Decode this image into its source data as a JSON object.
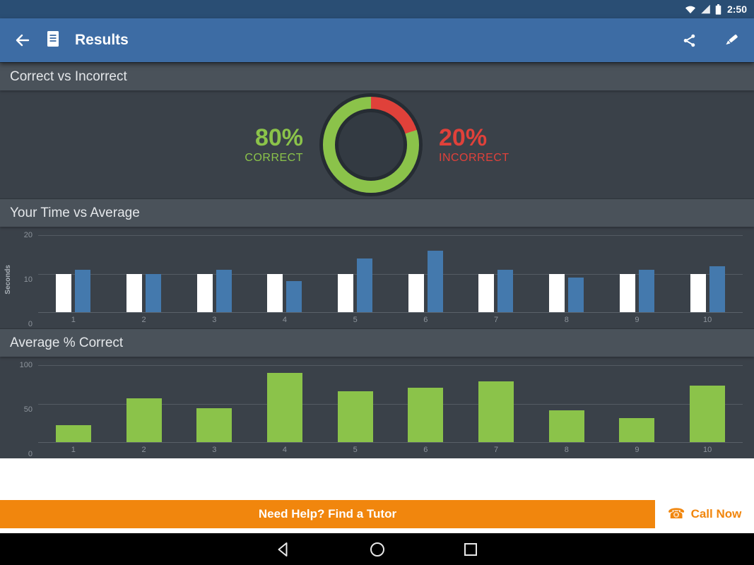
{
  "status_bar": {
    "time": "2:50"
  },
  "app_bar": {
    "title": "Results"
  },
  "section_headers": {
    "donut": "Correct vs Incorrect",
    "time": "Your Time vs Average",
    "pct": "Average % Correct"
  },
  "results": {
    "correct_pct": "80%",
    "correct_label": "CORRECT",
    "incorrect_pct": "20%",
    "incorrect_label": "INCORRECT"
  },
  "chart_data": [
    {
      "type": "pie",
      "title": "Correct vs Incorrect",
      "donut": true,
      "slices": [
        {
          "label": "CORRECT",
          "value": 80,
          "color": "#8bc34a"
        },
        {
          "label": "INCORRECT",
          "value": 20,
          "color": "#e0413a"
        }
      ]
    },
    {
      "type": "bar",
      "title": "Your Time vs Average",
      "xlabel": "",
      "ylabel": "Seconds",
      "ylim": [
        0,
        20
      ],
      "yticks": [
        0,
        10,
        20
      ],
      "grid": true,
      "legend_position": "none",
      "categories": [
        "1",
        "2",
        "3",
        "4",
        "5",
        "6",
        "7",
        "8",
        "9",
        "10"
      ],
      "series": [
        {
          "name": "Your Time",
          "color": "#ffffff",
          "values": [
            10,
            10,
            10,
            10,
            10,
            10,
            10,
            10,
            10,
            10
          ]
        },
        {
          "name": "Average",
          "color": "#4479ad",
          "values": [
            11,
            10,
            11,
            8,
            14,
            16,
            11,
            9,
            11,
            12
          ]
        }
      ]
    },
    {
      "type": "bar",
      "title": "Average % Correct",
      "xlabel": "",
      "ylabel": "",
      "ylim": [
        0,
        100
      ],
      "yticks": [
        0,
        50,
        100
      ],
      "grid": true,
      "legend_position": "none",
      "categories": [
        "1",
        "2",
        "3",
        "4",
        "5",
        "6",
        "7",
        "8",
        "9",
        "10"
      ],
      "values": [
        22,
        57,
        44,
        90,
        66,
        71,
        79,
        41,
        31,
        73
      ],
      "color": "#8bc34a"
    }
  ],
  "footer": {
    "tutor_label": "Need Help? Find a Tutor",
    "call_glyph": "☎",
    "call_label": "Call Now"
  },
  "colors": {
    "accent_orange": "#f1860d",
    "correct_green": "#8bc34a",
    "incorrect_red": "#e0413a",
    "average_blue": "#4479ad",
    "app_bar_blue": "#3d6ca4"
  }
}
